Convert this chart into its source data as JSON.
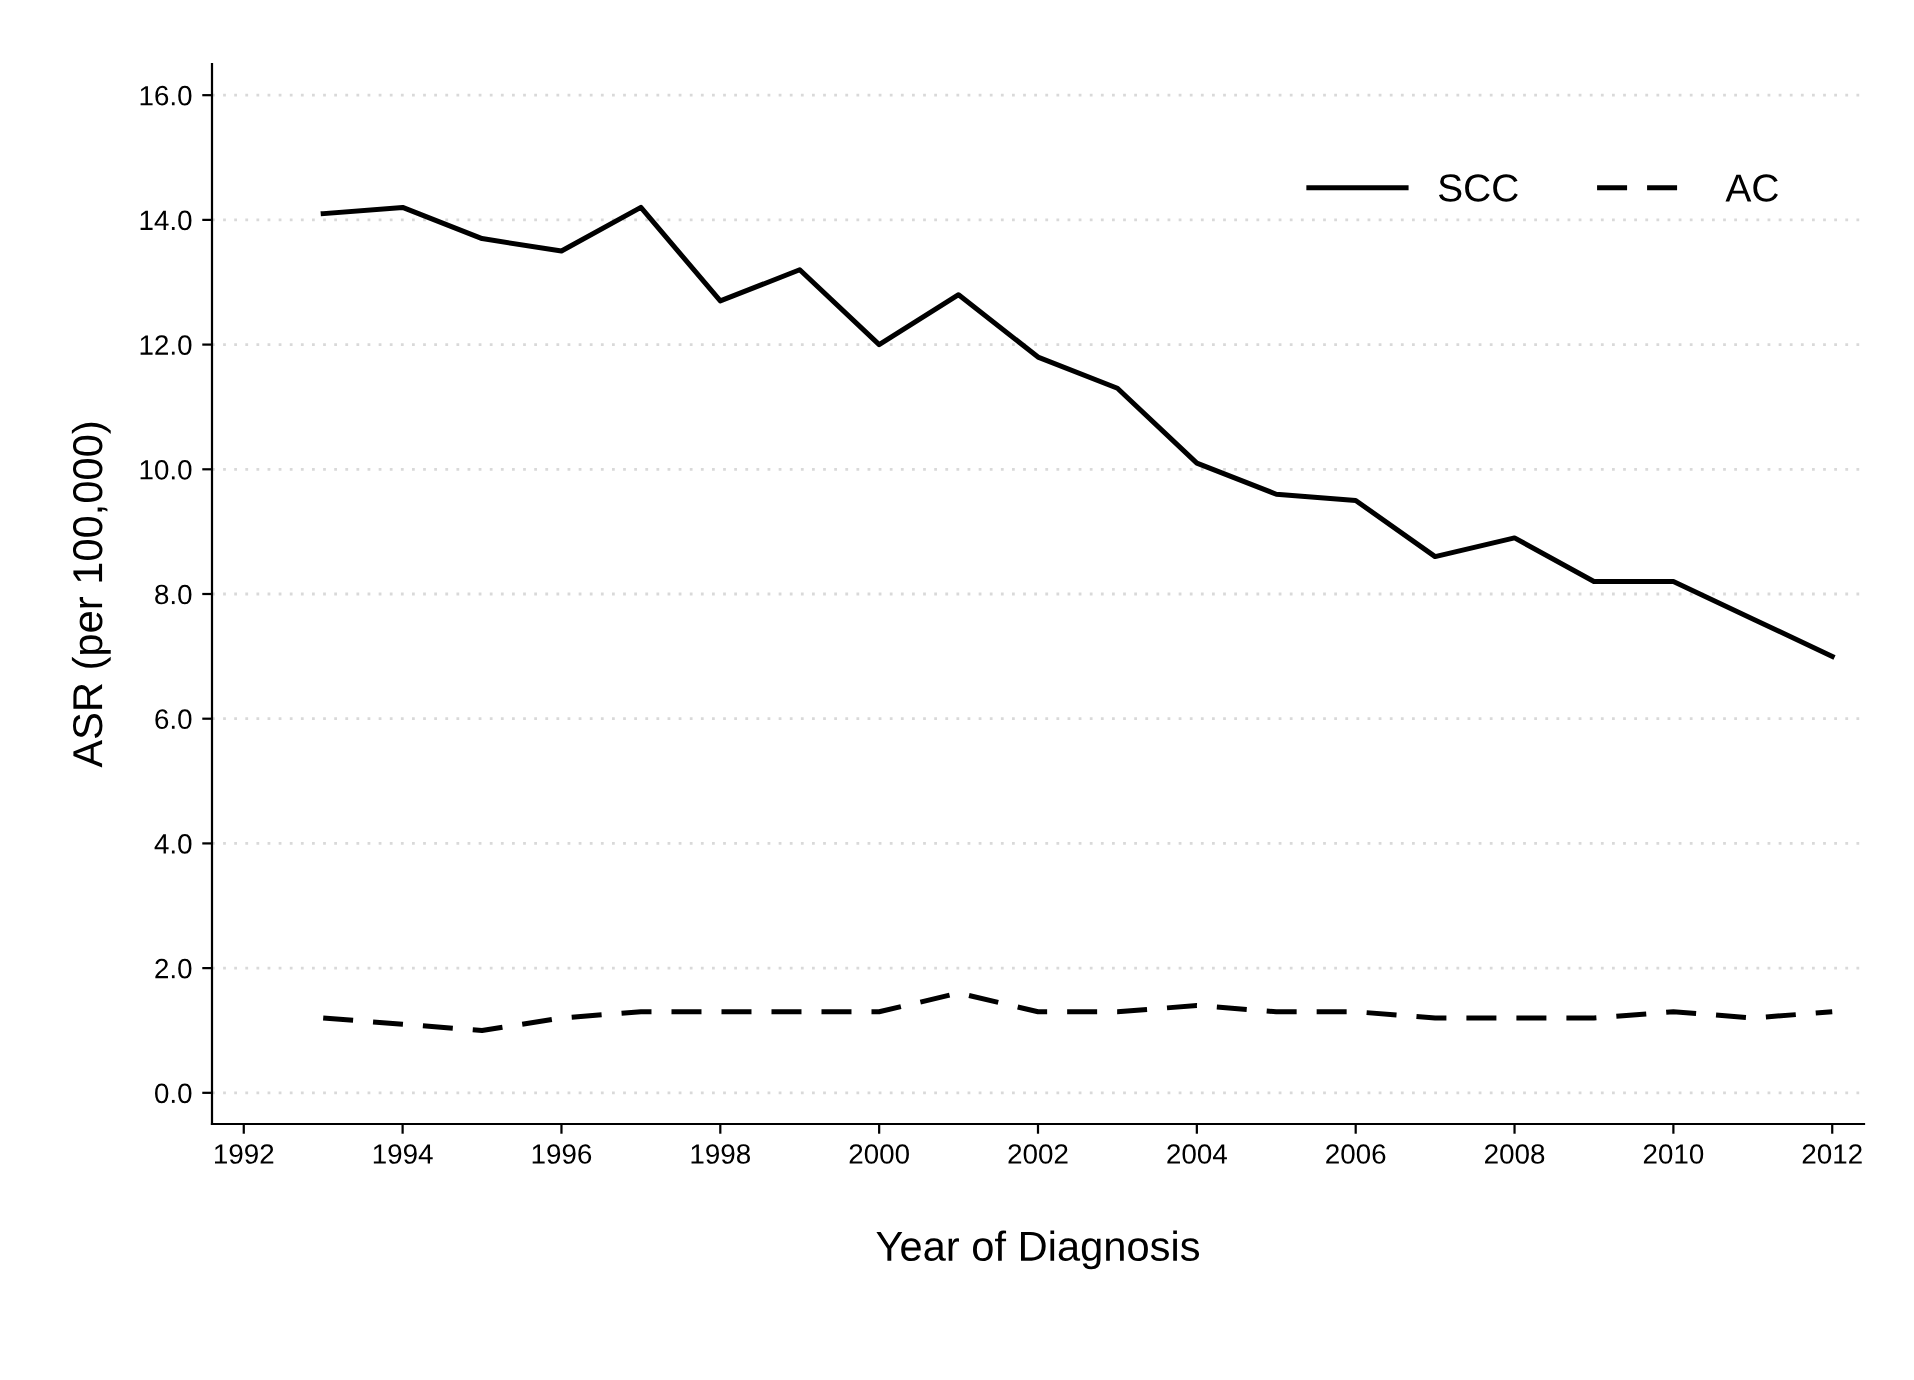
{
  "chart_data": {
    "type": "line",
    "xlabel": "Year of Diagnosis",
    "ylabel": "ASR (per 100,000)",
    "x": [
      1993,
      1994,
      1995,
      1996,
      1997,
      1998,
      1999,
      2000,
      2001,
      2002,
      2003,
      2004,
      2005,
      2006,
      2007,
      2008,
      2009,
      2010,
      2011,
      2012
    ],
    "series": [
      {
        "name": "SCC",
        "color": "#000000",
        "line_style": "solid",
        "values": [
          14.1,
          14.2,
          13.7,
          13.5,
          14.2,
          12.7,
          13.2,
          12.0,
          12.8,
          11.8,
          11.3,
          10.1,
          9.6,
          9.5,
          8.6,
          8.9,
          8.2,
          8.2,
          7.6,
          7.0
        ]
      },
      {
        "name": "AC",
        "color": "#000000",
        "line_style": "dashed",
        "values": [
          1.2,
          1.1,
          1.0,
          1.2,
          1.3,
          1.3,
          1.3,
          1.3,
          1.6,
          1.3,
          1.3,
          1.4,
          1.3,
          1.3,
          1.2,
          1.2,
          1.2,
          1.3,
          1.2,
          1.3
        ]
      }
    ],
    "xlim": [
      1991.6,
      2012.4
    ],
    "xticks": [
      1992,
      1994,
      1996,
      1998,
      2000,
      2002,
      2004,
      2006,
      2008,
      2010,
      2012
    ],
    "ylim": [
      -0.5,
      16.5
    ],
    "yticks": [
      {
        "value": 0,
        "label": "0.0"
      },
      {
        "value": 2,
        "label": "2.0"
      },
      {
        "value": 4,
        "label": "4.0"
      },
      {
        "value": 6,
        "label": "6.0"
      },
      {
        "value": 8,
        "label": "8.0"
      },
      {
        "value": 10,
        "label": "10.0"
      },
      {
        "value": 12,
        "label": "12.0"
      },
      {
        "value": 14,
        "label": "14.0"
      },
      {
        "value": 16,
        "label": "16.0"
      }
    ],
    "grid": "y",
    "legend": "top right",
    "marker": "none"
  }
}
